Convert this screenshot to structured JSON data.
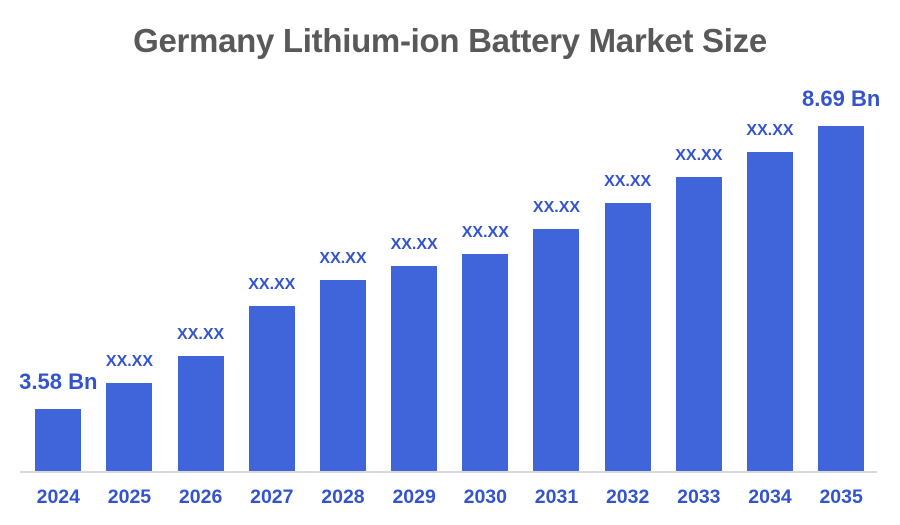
{
  "chart_data": {
    "type": "bar",
    "title": "Germany Lithium-ion Battery Market Size",
    "categories": [
      "2024",
      "2025",
      "2026",
      "2027",
      "2028",
      "2029",
      "2030",
      "2031",
      "2032",
      "2033",
      "2034",
      "2035"
    ],
    "values": [
      3.58,
      4.05,
      4.54,
      5.44,
      5.91,
      6.16,
      6.38,
      6.83,
      7.3,
      7.77,
      8.22,
      8.69
    ],
    "value_labels": [
      "3.58 Bn",
      "XX.XX",
      "XX.XX",
      "XX.XX",
      "XX.XX",
      "XX.XX",
      "XX.XX",
      "XX.XX",
      "XX.XX",
      "XX.XX",
      "XX.XX",
      "8.69 Bn"
    ],
    "unit": "Bn",
    "ylim": [
      2.46,
      9.0
    ],
    "gridlines": false,
    "legend": false,
    "bar_color": "#4065DB",
    "label_color": "#3354CC",
    "title_color": "#595959",
    "axis_line_color": "#D9D9D9"
  }
}
